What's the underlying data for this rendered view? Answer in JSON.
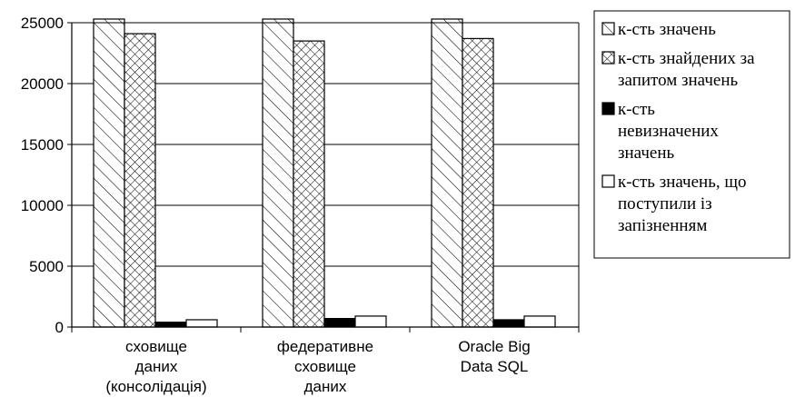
{
  "chart_data": {
    "type": "bar",
    "title": "",
    "xlabel": "",
    "ylabel": "",
    "ylim": [
      0,
      25000
    ],
    "yticks": [
      0,
      5000,
      10000,
      15000,
      20000,
      25000
    ],
    "grid": true,
    "legend_position": "right",
    "categories": [
      [
        "сховище",
        "даних",
        "(консолідація)"
      ],
      [
        "федеративне",
        "сховище",
        "даних"
      ],
      [
        "Oracle Big",
        "Data SQL"
      ]
    ],
    "series": [
      {
        "name": [
          "к-сть значень"
        ],
        "fill": "diagonal-hatch",
        "values": [
          25300,
          25300,
          25300
        ]
      },
      {
        "name": [
          "к-сть знайдених за",
          "запитом значень"
        ],
        "fill": "cross-hatch",
        "values": [
          24100,
          23500,
          23700
        ]
      },
      {
        "name": [
          "к-сть",
          "невизначених",
          "значень"
        ],
        "fill": "solid-black",
        "values": [
          400,
          700,
          600
        ]
      },
      {
        "name": [
          "к-сть значень, що",
          "поступили із",
          "запізненням"
        ],
        "fill": "white",
        "values": [
          600,
          900,
          900
        ]
      }
    ]
  }
}
